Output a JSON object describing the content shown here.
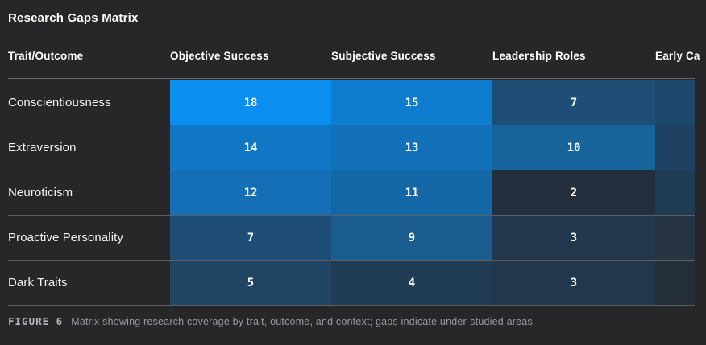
{
  "title": "Research Gaps Matrix",
  "colors": {
    "page_bg": "#272729",
    "heat_min_color": "#242f3e",
    "heat_max_color": "#0a8ef0",
    "divider": "rgba(255,255,255,0.26)",
    "text_primary": "#ffffff",
    "caption_text": "#989aa2"
  },
  "matrix": {
    "corner_header": "Trait/Outcome",
    "column_headers": [
      "Objective Success",
      "Subjective Success",
      "Leadership Roles",
      "Early Ca"
    ],
    "rows": [
      {
        "label": "Conscientiousness",
        "cells": [
          {
            "value": "18",
            "color": "#0a8ef0"
          },
          {
            "value": "15",
            "color": "#0f7dcf"
          },
          {
            "value": "7",
            "color": "#1e4d75"
          },
          {
            "value": "",
            "color": "#1e486b"
          }
        ]
      },
      {
        "label": "Extraversion",
        "cells": [
          {
            "value": "14",
            "color": "#1177c4"
          },
          {
            "value": "13",
            "color": "#1271b9"
          },
          {
            "value": "10",
            "color": "#17639c"
          },
          {
            "value": "",
            "color": "#1f4262"
          }
        ]
      },
      {
        "label": "Neuroticism",
        "cells": [
          {
            "value": "12",
            "color": "#156fb6"
          },
          {
            "value": "11",
            "color": "#1568a7"
          },
          {
            "value": "2",
            "color": "#242f3e"
          },
          {
            "value": "",
            "color": "#203c55"
          }
        ]
      },
      {
        "label": "Proactive Personality",
        "cells": [
          {
            "value": "7",
            "color": "#1e4d75"
          },
          {
            "value": "9",
            "color": "#1a5c8e"
          },
          {
            "value": "3",
            "color": "#22374b"
          },
          {
            "value": "",
            "color": "#253343"
          }
        ]
      },
      {
        "label": "Dark Traits",
        "cells": [
          {
            "value": "5",
            "color": "#204463"
          },
          {
            "value": "4",
            "color": "#213d56"
          },
          {
            "value": "3",
            "color": "#22374b"
          },
          {
            "value": "",
            "color": "#242e3b"
          }
        ]
      }
    ]
  },
  "caption": {
    "tag": "FIGURE 6",
    "text": "Matrix showing research coverage by trait, outcome, and context; gaps indicate under-studied areas."
  },
  "chart_data": {
    "type": "heatmap",
    "title": "Research Gaps Matrix",
    "x_categories": [
      "Objective Success",
      "Subjective Success",
      "Leadership Roles",
      "Early Ca (clipped at right edge)"
    ],
    "y_categories": [
      "Conscientiousness",
      "Extraversion",
      "Neuroticism",
      "Proactive Personality",
      "Dark Traits"
    ],
    "values": [
      [
        18,
        15,
        7,
        null
      ],
      [
        14,
        13,
        10,
        null
      ],
      [
        12,
        11,
        2,
        null
      ],
      [
        7,
        9,
        3,
        null
      ],
      [
        5,
        4,
        3,
        null
      ]
    ],
    "color_scale": {
      "min_value": 2,
      "max_value": 18,
      "min_color": "#242f3e",
      "max_color": "#0a8ef0"
    },
    "legend": "none",
    "caption": "FIGURE 6  Matrix showing research coverage by trait, outcome, and context; gaps indicate under-studied areas."
  }
}
